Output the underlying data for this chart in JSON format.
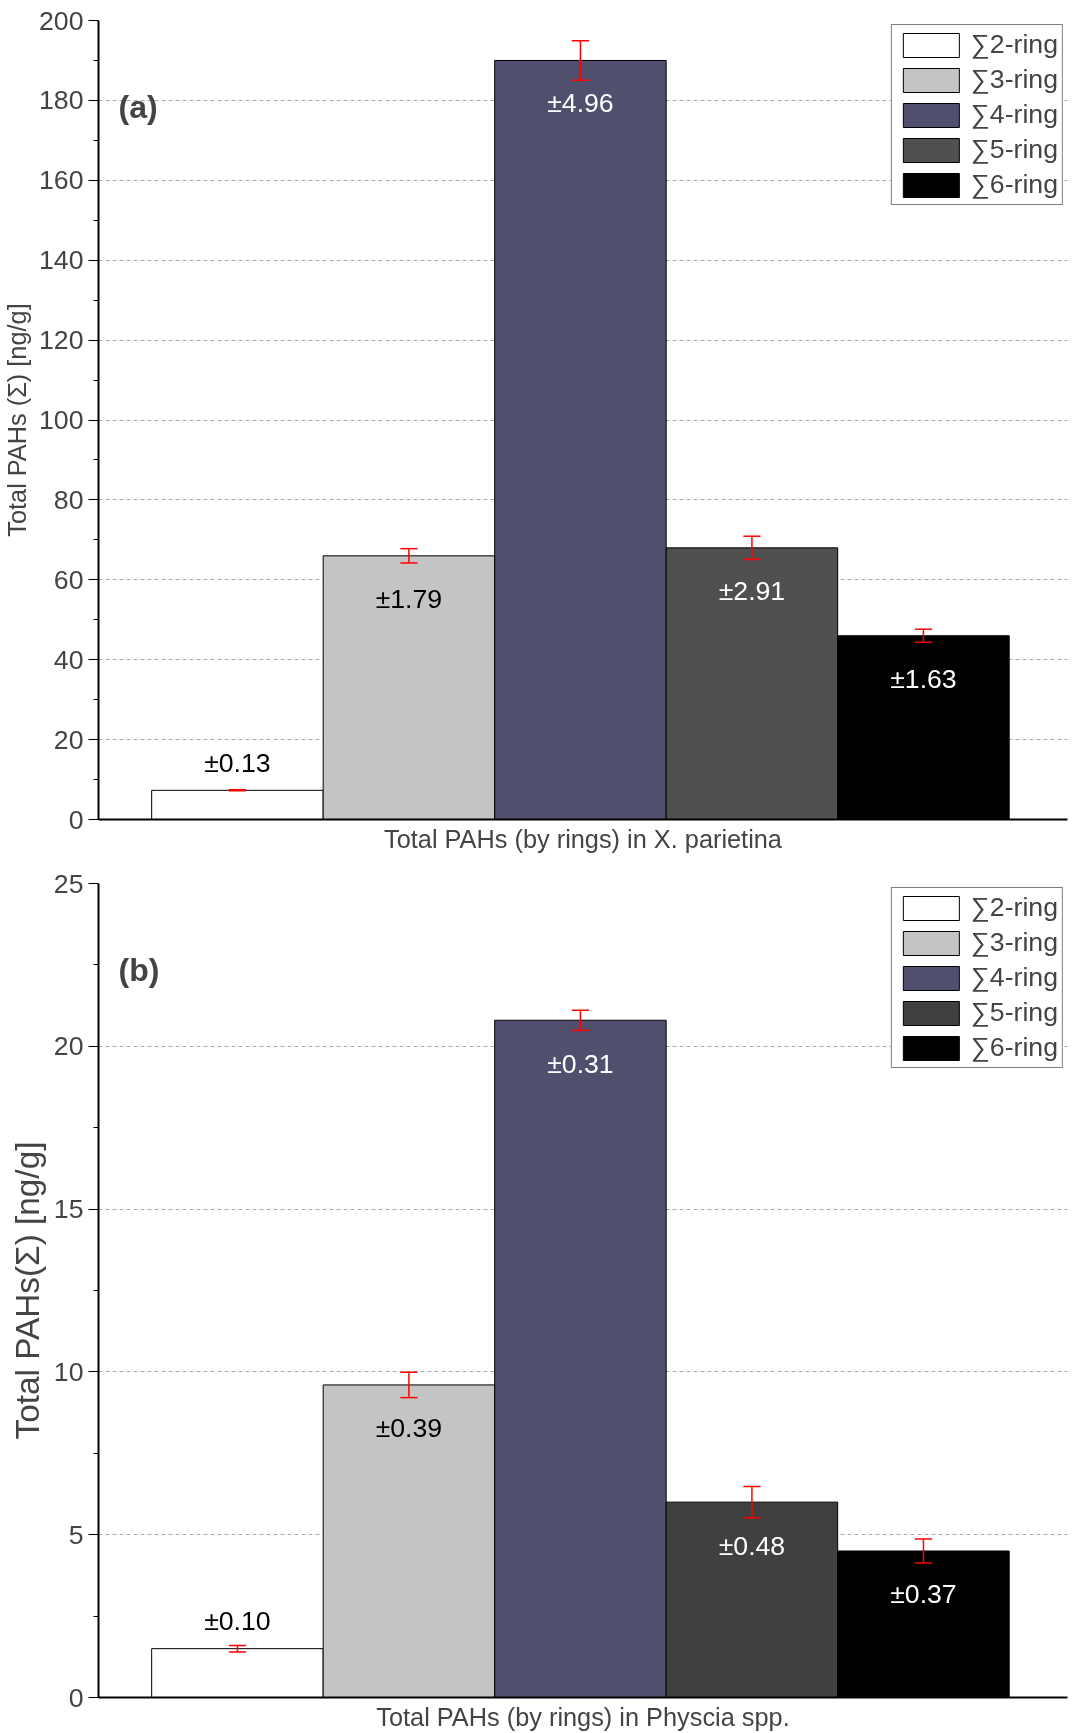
{
  "chart_data": [
    {
      "type": "bar",
      "annotations": [
        "(a)",
        {
          "text": "±0.13",
          "y": 7.3
        },
        {
          "text": "±1.79",
          "y": 66
        },
        {
          "text": "±4.96",
          "y": 190
        },
        {
          "text": "±2.91",
          "y": 68
        },
        {
          "text": "±1.63",
          "y": 46
        }
      ],
      "ylabel": "Total PAHs (Σ) [ng/g]",
      "xlabel": "Total PAHs (by rings) in X. parietina",
      "categories": [
        null,
        null,
        null,
        null,
        null
      ],
      "ylim": [
        0,
        200
      ],
      "yticks": [
        0,
        20,
        40,
        60,
        80,
        100,
        120,
        140,
        160,
        180,
        200
      ],
      "grid": "y",
      "legend": "top right",
      "tick_labels": "y",
      "series": [
        {
          "name": "∑2-ring",
          "color": "#ffffff",
          "values": [
            7.3,
            null,
            null,
            null,
            null
          ],
          "errors": [
            0.13,
            null,
            null,
            null,
            null
          ]
        },
        {
          "name": "∑3-ring",
          "color": "#c4c4c4",
          "values": [
            null,
            66,
            null,
            null,
            null
          ],
          "errors": [
            null,
            1.79,
            null,
            null,
            null
          ]
        },
        {
          "name": "∑4-ring",
          "color": "#50506e",
          "values": [
            null,
            null,
            190,
            null,
            null
          ],
          "errors": [
            null,
            null,
            4.96,
            null,
            null
          ]
        },
        {
          "name": "∑5-ring",
          "color": "#505050",
          "values": [
            null,
            null,
            null,
            68,
            null
          ],
          "errors": [
            null,
            null,
            null,
            2.91,
            null
          ]
        },
        {
          "name": "∑6-ring",
          "color": "#000000",
          "values": [
            null,
            null,
            null,
            null,
            46
          ],
          "errors": [
            null,
            null,
            null,
            null,
            1.63
          ]
        }
      ]
    },
    {
      "type": "bar",
      "annotations": [
        "(b)",
        {
          "text": "±0.10",
          "y": 1.5
        },
        {
          "text": "±0.39",
          "y": 9.6
        },
        {
          "text": "±0.31",
          "y": 20.8
        },
        {
          "text": "±0.48",
          "y": 6.0
        },
        {
          "text": "±0.37",
          "y": 4.5
        }
      ],
      "ylabel": "Total PAHs(Σ) [ng/g]",
      "xlabel": "Total PAHs (by rings) in Physcia spp.",
      "categories": [
        null,
        null,
        null,
        null,
        null
      ],
      "ylim": [
        0,
        25
      ],
      "yticks": [
        0,
        5,
        10,
        15,
        20,
        25
      ],
      "grid": "y",
      "legend": "top right",
      "tick_labels": "y",
      "series": [
        {
          "name": "∑2-ring",
          "color": "#ffffff",
          "values": [
            1.5,
            null,
            null,
            null,
            null
          ],
          "errors": [
            0.1,
            null,
            null,
            null,
            null
          ]
        },
        {
          "name": "∑3-ring",
          "color": "#c4c4c4",
          "values": [
            null,
            9.6,
            null,
            null,
            null
          ],
          "errors": [
            null,
            0.39,
            null,
            null,
            null
          ]
        },
        {
          "name": "∑4-ring",
          "color": "#50506e",
          "values": [
            null,
            null,
            20.8,
            null,
            null
          ],
          "errors": [
            null,
            null,
            0.31,
            null,
            null
          ]
        },
        {
          "name": "∑5-ring",
          "color": "#404040",
          "values": [
            null,
            null,
            null,
            6.0,
            null
          ],
          "errors": [
            null,
            null,
            null,
            0.48,
            null
          ]
        },
        {
          "name": "∑6-ring",
          "color": "#000000",
          "values": [
            null,
            null,
            null,
            null,
            4.5
          ],
          "errors": [
            null,
            null,
            null,
            null,
            0.37
          ]
        }
      ]
    }
  ]
}
